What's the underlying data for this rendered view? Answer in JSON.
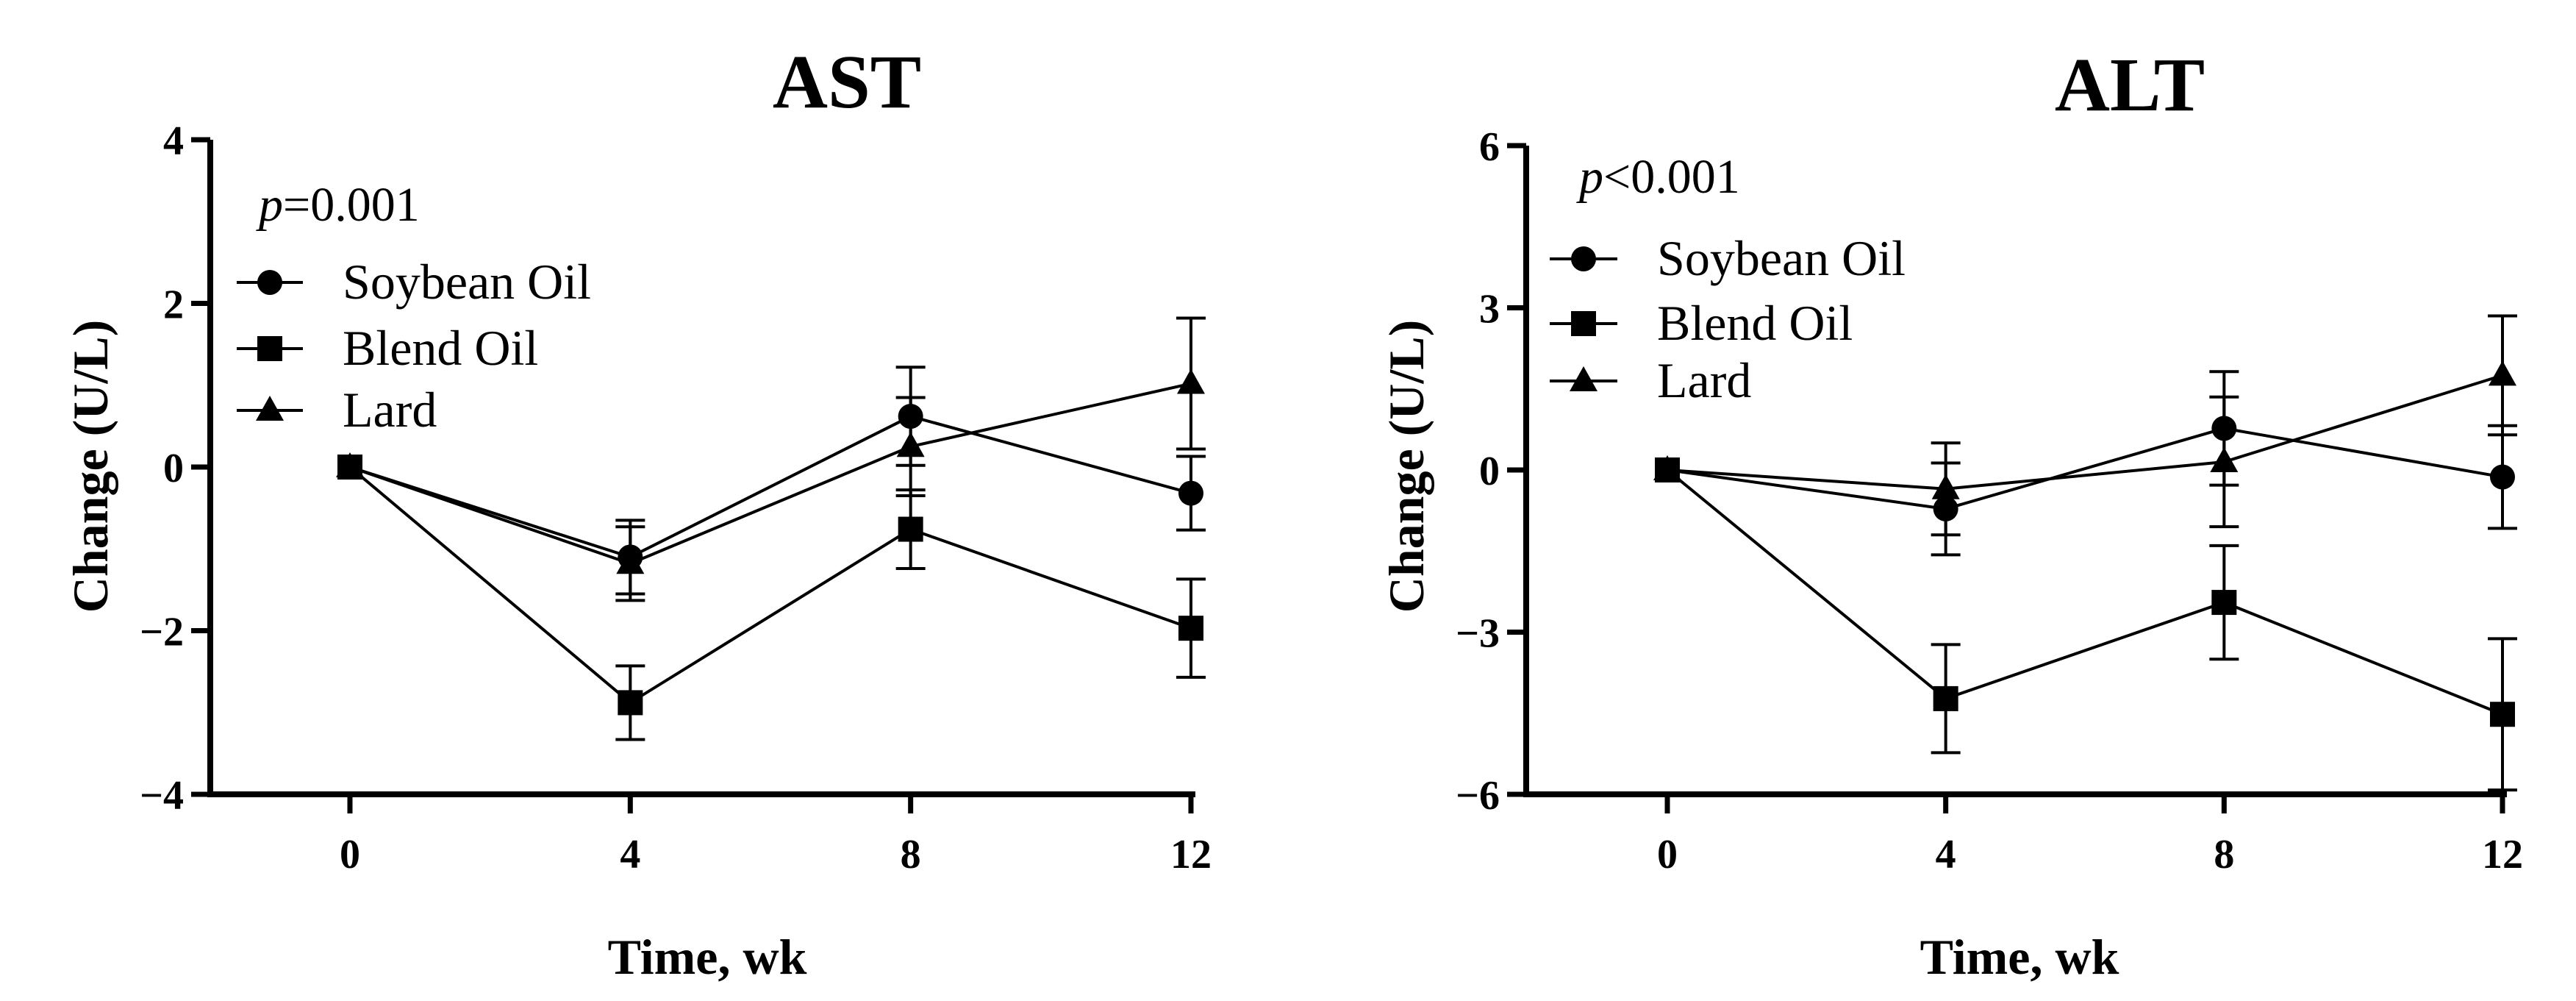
{
  "chart_data": [
    {
      "type": "line",
      "title": "AST",
      "xlabel": "Time, wk",
      "ylabel": "Change (U/L)",
      "annotation": {
        "italic": "p",
        "text": "=0.001"
      },
      "x": [
        0,
        4,
        8,
        12
      ],
      "x_ticks": [
        "0",
        "4",
        "8",
        "12"
      ],
      "xlim": [
        -2,
        12
      ],
      "ylim": [
        -4,
        4
      ],
      "y_ticks": [
        4,
        2,
        0,
        -2,
        -4
      ],
      "y_tick_labels": [
        "4",
        "2",
        "0",
        "−2",
        "−4"
      ],
      "series": [
        {
          "name": "Soybean Oil",
          "marker": "circle",
          "values": [
            0,
            -1.1,
            0.62,
            -0.32
          ],
          "errors": [
            0,
            0.45,
            0.6,
            0.45
          ]
        },
        {
          "name": "Blend Oil",
          "marker": "square",
          "values": [
            0,
            -2.88,
            -0.76,
            -1.97
          ],
          "errors": [
            0,
            0.45,
            0.48,
            0.6
          ]
        },
        {
          "name": "Lard",
          "marker": "triangle",
          "values": [
            0,
            -1.18,
            0.25,
            1.02
          ],
          "errors": [
            0,
            0.45,
            0.6,
            0.8
          ]
        }
      ],
      "legend_position": "top-left"
    },
    {
      "type": "line",
      "title": "ALT",
      "xlabel": "Time, wk",
      "ylabel": "Change (U/L)",
      "annotation": {
        "italic": "p",
        "text": "<0.001"
      },
      "x": [
        0,
        4,
        8,
        12
      ],
      "x_ticks": [
        "0",
        "4",
        "8",
        "12"
      ],
      "xlim": [
        -2,
        12
      ],
      "ylim": [
        -6,
        6
      ],
      "y_ticks": [
        6,
        3,
        0,
        -3,
        -6
      ],
      "y_tick_labels": [
        "6",
        "3",
        "0",
        "−3",
        "−6"
      ],
      "series": [
        {
          "name": "Soybean Oil",
          "marker": "circle",
          "values": [
            0,
            -0.72,
            0.77,
            -0.13
          ],
          "errors": [
            0,
            0.85,
            1.05,
            0.95
          ]
        },
        {
          "name": "Blend Oil",
          "marker": "square",
          "values": [
            0,
            -4.23,
            -2.45,
            -4.52
          ],
          "errors": [
            0,
            1.0,
            1.05,
            1.4
          ]
        },
        {
          "name": "Lard",
          "marker": "triangle",
          "values": [
            0,
            -0.35,
            0.15,
            1.75
          ],
          "errors": [
            0,
            0.85,
            1.2,
            1.1
          ]
        }
      ],
      "legend_position": "top-left"
    }
  ]
}
